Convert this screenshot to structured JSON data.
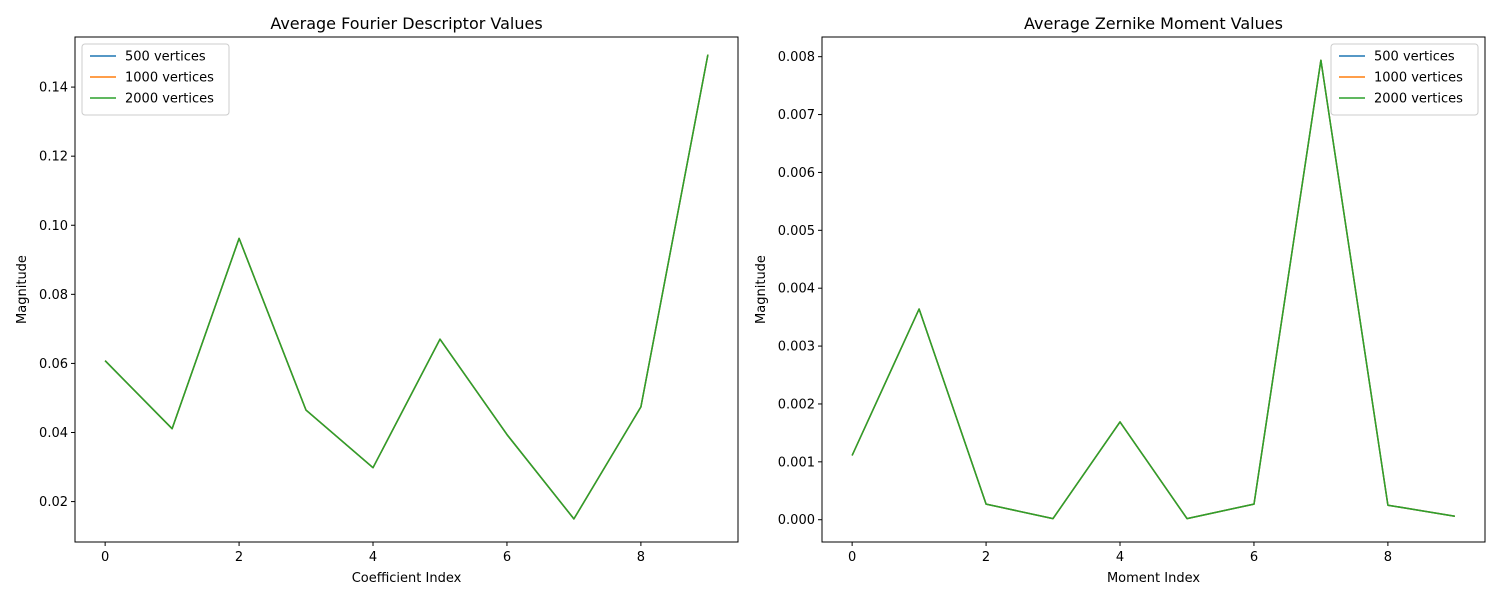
{
  "chart_data": [
    {
      "type": "line",
      "title": "Average Fourier Descriptor Values",
      "xlabel": "Coefficient Index",
      "ylabel": "Magnitude",
      "x": [
        0,
        1,
        2,
        3,
        4,
        5,
        6,
        7,
        8,
        9
      ],
      "xlim": [
        -0.45,
        9.45
      ],
      "ylim": [
        0.0083,
        0.1545
      ],
      "xticks": [
        0,
        2,
        4,
        6,
        8
      ],
      "xtick_labels": [
        "0",
        "2",
        "4",
        "6",
        "8"
      ],
      "yticks": [
        0.02,
        0.04,
        0.06,
        0.08,
        0.1,
        0.12,
        0.14
      ],
      "ytick_labels": [
        "0.02",
        "0.04",
        "0.06",
        "0.08",
        "0.10",
        "0.12",
        "0.14"
      ],
      "legend_position": "upper left",
      "grid": false,
      "series": [
        {
          "name": "500 vertices",
          "color": "#1f77b4",
          "values": [
            0.0608,
            0.0411,
            0.0962,
            0.0465,
            0.0298,
            0.067,
            0.0394,
            0.015,
            0.0474,
            0.1494
          ]
        },
        {
          "name": "1000 vertices",
          "color": "#ff7f0e",
          "values": [
            0.0608,
            0.0411,
            0.0962,
            0.0465,
            0.0298,
            0.067,
            0.0394,
            0.015,
            0.0474,
            0.1494
          ]
        },
        {
          "name": "2000 vertices",
          "color": "#2ca02c",
          "values": [
            0.0608,
            0.0411,
            0.0962,
            0.0465,
            0.0298,
            0.067,
            0.0394,
            0.015,
            0.0474,
            0.1494
          ]
        }
      ]
    },
    {
      "type": "line",
      "title": "Average Zernike Moment Values",
      "xlabel": "Moment Index",
      "ylabel": "Magnitude",
      "x": [
        0,
        1,
        2,
        3,
        4,
        5,
        6,
        7,
        8,
        9
      ],
      "xlim": [
        -0.45,
        9.45
      ],
      "ylim": [
        -0.000385,
        0.00834
      ],
      "xticks": [
        0,
        2,
        4,
        6,
        8
      ],
      "xtick_labels": [
        "0",
        "2",
        "4",
        "6",
        "8"
      ],
      "yticks": [
        0.0,
        0.001,
        0.002,
        0.003,
        0.004,
        0.005,
        0.006,
        0.007,
        0.008
      ],
      "ytick_labels": [
        "0.000",
        "0.001",
        "0.002",
        "0.003",
        "0.004",
        "0.005",
        "0.006",
        "0.007",
        "0.008"
      ],
      "legend_position": "upper right",
      "grid": false,
      "series": [
        {
          "name": "500 vertices",
          "color": "#1f77b4",
          "values": [
            0.00111,
            0.00364,
            0.00027,
            2e-05,
            0.00169,
            2e-05,
            0.00027,
            0.00794,
            0.00025,
            6e-05
          ]
        },
        {
          "name": "1000 vertices",
          "color": "#ff7f0e",
          "values": [
            0.00111,
            0.00364,
            0.00027,
            2e-05,
            0.00169,
            2e-05,
            0.00027,
            0.00794,
            0.00025,
            6e-05
          ]
        },
        {
          "name": "2000 vertices",
          "color": "#2ca02c",
          "values": [
            0.00111,
            0.00364,
            0.00027,
            2e-05,
            0.00169,
            2e-05,
            0.00027,
            0.00794,
            0.00025,
            6e-05
          ]
        }
      ]
    }
  ]
}
